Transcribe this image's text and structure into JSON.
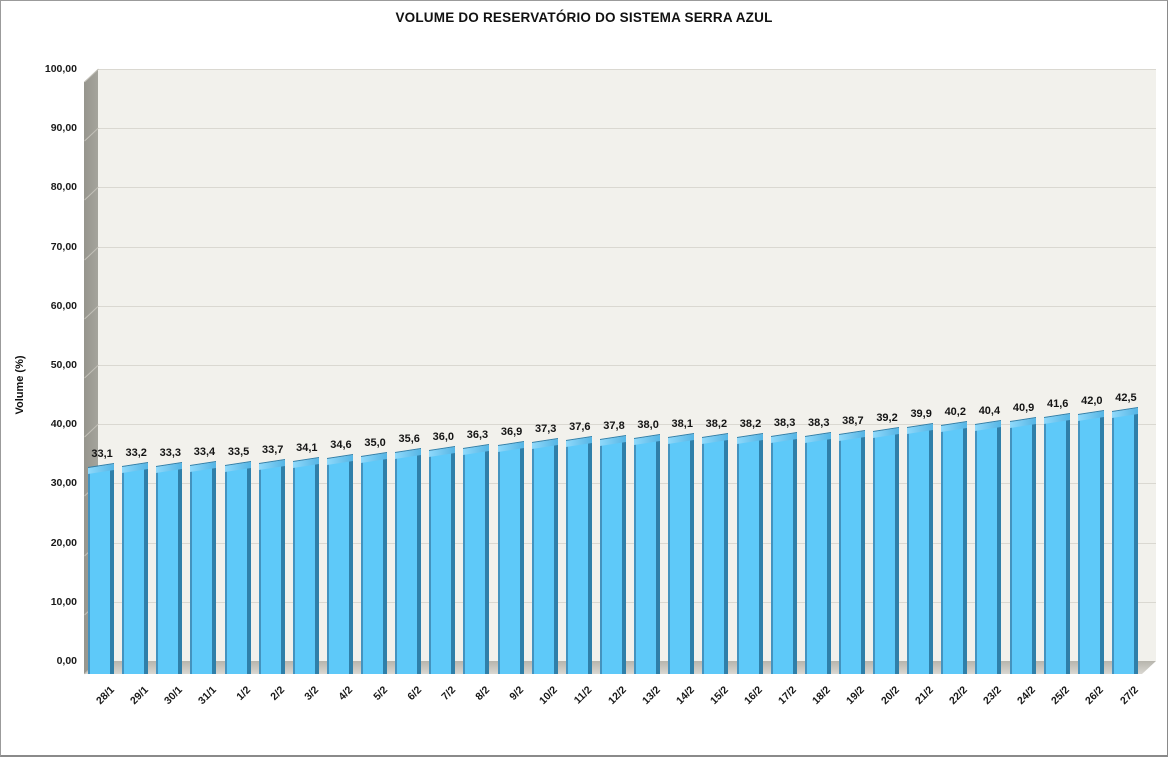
{
  "window": {
    "background": "#ffffff",
    "border_color": "#8c8c8c"
  },
  "chart_data": {
    "type": "bar",
    "style": "3d-bar",
    "title": "VOLUME DO RESERVATÓRIO DO SISTEMA SERRA AZUL",
    "xlabel": "",
    "ylabel": "Volume (%)",
    "ylim": [
      0,
      100
    ],
    "ytick_step": 10,
    "ytick_labels": [
      "100,00",
      "90,00",
      "80,00",
      "70,00",
      "60,00",
      "50,00",
      "40,00",
      "30,00",
      "20,00",
      "10,00",
      "0,00"
    ],
    "grid": true,
    "legend": "none",
    "categories": [
      "28/1",
      "29/1",
      "30/1",
      "31/1",
      "1/2",
      "2/2",
      "3/2",
      "4/2",
      "5/2",
      "6/2",
      "7/2",
      "8/2",
      "9/2",
      "10/2",
      "11/2",
      "12/2",
      "13/2",
      "14/2",
      "15/2",
      "16/2",
      "17/2",
      "18/2",
      "19/2",
      "20/2",
      "21/2",
      "22/2",
      "23/2",
      "24/2",
      "25/2",
      "26/2",
      "27/2"
    ],
    "values": [
      33.1,
      33.2,
      33.3,
      33.4,
      33.5,
      33.7,
      34.1,
      34.6,
      35.0,
      35.6,
      36.0,
      36.3,
      36.9,
      37.3,
      37.6,
      37.8,
      38.0,
      38.1,
      38.2,
      38.2,
      38.3,
      38.3,
      38.7,
      39.2,
      39.9,
      40.2,
      40.4,
      40.9,
      41.6,
      42.0,
      42.5
    ],
    "value_labels": [
      "33,1",
      "33,2",
      "33,3",
      "33,4",
      "33,5",
      "33,7",
      "34,1",
      "34,6",
      "35,0",
      "35,6",
      "36,0",
      "36,3",
      "36,9",
      "37,3",
      "37,6",
      "37,8",
      "38,0",
      "38,1",
      "38,2",
      "38,2",
      "38,3",
      "38,3",
      "38,7",
      "39,2",
      "39,9",
      "40,2",
      "40,4",
      "40,9",
      "41,6",
      "42,0",
      "42,5"
    ],
    "colors": {
      "bar_face": "#5EC9F9",
      "bar_side": "#2F7FA9",
      "bar_edge": "#4493BF",
      "bar_top": "#7ED2F8",
      "plot_bg": "#F2F1EC",
      "wall": "#A09F97",
      "floor": "#C9C7BF",
      "gridline": "#DAD8D1",
      "label": "#141414"
    }
  }
}
